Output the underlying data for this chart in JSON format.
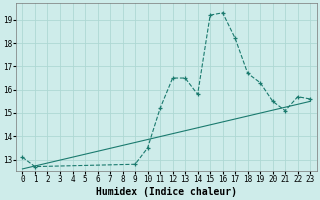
{
  "xlabel": "Humidex (Indice chaleur)",
  "background_color": "#ceecea",
  "line_color": "#1a7a6e",
  "grid_color": "#aed8d4",
  "x_hours": [
    0,
    1,
    9,
    10,
    11,
    12,
    13,
    14,
    15,
    16,
    17,
    18,
    19,
    20,
    21,
    22,
    23
  ],
  "y_values": [
    13.1,
    12.7,
    12.8,
    13.5,
    15.2,
    16.5,
    16.5,
    15.8,
    19.2,
    19.3,
    18.2,
    16.7,
    16.3,
    15.5,
    15.1,
    15.7,
    15.6
  ],
  "trend_x": [
    0,
    23
  ],
  "trend_y": [
    12.6,
    15.5
  ],
  "ylim": [
    12.5,
    19.7
  ],
  "xlim": [
    -0.5,
    23.5
  ],
  "xticks": [
    0,
    1,
    2,
    3,
    4,
    5,
    6,
    7,
    8,
    9,
    10,
    11,
    12,
    13,
    14,
    15,
    16,
    17,
    18,
    19,
    20,
    21,
    22,
    23
  ],
  "yticks": [
    13,
    14,
    15,
    16,
    17,
    18,
    19
  ],
  "xlabel_fontsize": 7,
  "tick_fontsize": 5.5
}
